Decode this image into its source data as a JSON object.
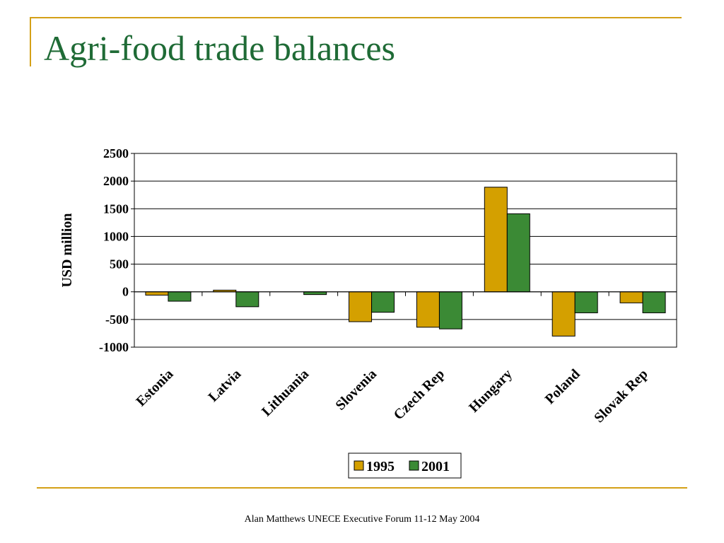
{
  "slide": {
    "title": "Agri-food trade balances",
    "footer": "Alan Matthews UNECE Executive Forum 11-12 May 2004"
  },
  "colors": {
    "accent_line": "#d4a017",
    "title": "#1f6b36",
    "series_1995": "#d4a000",
    "series_2001": "#3b8a35"
  },
  "chart_data": {
    "type": "bar",
    "title": "",
    "xlabel": "",
    "ylabel": "USD million",
    "ylim": [
      -1000,
      2500
    ],
    "yticks": [
      2500,
      2000,
      1500,
      1000,
      500,
      0,
      -500,
      -1000
    ],
    "grid": true,
    "legend_position": "bottom-center",
    "categories": [
      "Estonia",
      "Latvia",
      "Lithuania",
      "Slovenia",
      "Czech Rep",
      "Hungary",
      "Poland",
      "Slovak Rep"
    ],
    "series": [
      {
        "name": "1995",
        "color": "#d4a000",
        "values": [
          -60,
          30,
          0,
          -540,
          -640,
          1890,
          -800,
          -200
        ]
      },
      {
        "name": "2001",
        "color": "#3b8a35",
        "values": [
          -170,
          -270,
          -50,
          -370,
          -670,
          1410,
          -380,
          -380
        ]
      }
    ]
  }
}
